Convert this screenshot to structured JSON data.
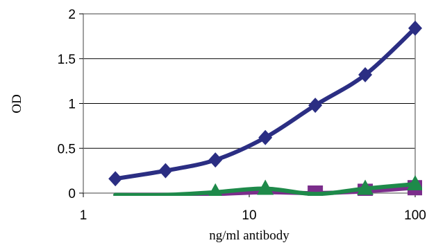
{
  "chart_data": {
    "type": "line",
    "xlabel": "ng/ml antibody",
    "ylabel": "OD",
    "xscale": "log",
    "xlim": [
      1,
      100
    ],
    "ylim": [
      0,
      2
    ],
    "grid": "horizontal",
    "legend": "none",
    "x_ticks": [
      {
        "value": 1,
        "label": "1"
      },
      {
        "value": 10,
        "label": "10"
      },
      {
        "value": 100,
        "label": "100"
      }
    ],
    "y_ticks": [
      {
        "value": 0,
        "label": "0"
      },
      {
        "value": 0.5,
        "label": "0.5"
      },
      {
        "value": 1,
        "label": "1"
      },
      {
        "value": 1.5,
        "label": "1.5"
      },
      {
        "value": 2,
        "label": "2"
      }
    ],
    "series": [
      {
        "color": "#2b2e83",
        "marker": "diamond",
        "x": [
          1.56,
          3.13,
          6.25,
          12.5,
          25,
          50,
          100
        ],
        "values": [
          0.16,
          0.25,
          0.37,
          0.62,
          0.98,
          1.32,
          1.84
        ]
      },
      {
        "color": "#7b2d8b",
        "marker": "square",
        "x": [
          1.56,
          3.13,
          6.25,
          12.5,
          25,
          50,
          100
        ],
        "values": [
          -0.02,
          -0.02,
          -0.01,
          0.01,
          0.0,
          0.02,
          0.06
        ],
        "visible_markers": [
          false,
          false,
          false,
          false,
          true,
          true,
          true
        ]
      },
      {
        "color": "#1e8a4a",
        "marker": "triangle",
        "x": [
          1.56,
          3.13,
          6.25,
          12.5,
          25,
          50,
          100
        ],
        "values": [
          -0.02,
          -0.02,
          0.01,
          0.05,
          -0.01,
          0.05,
          0.1
        ],
        "visible_markers": [
          false,
          false,
          true,
          true,
          false,
          true,
          true
        ]
      }
    ]
  }
}
